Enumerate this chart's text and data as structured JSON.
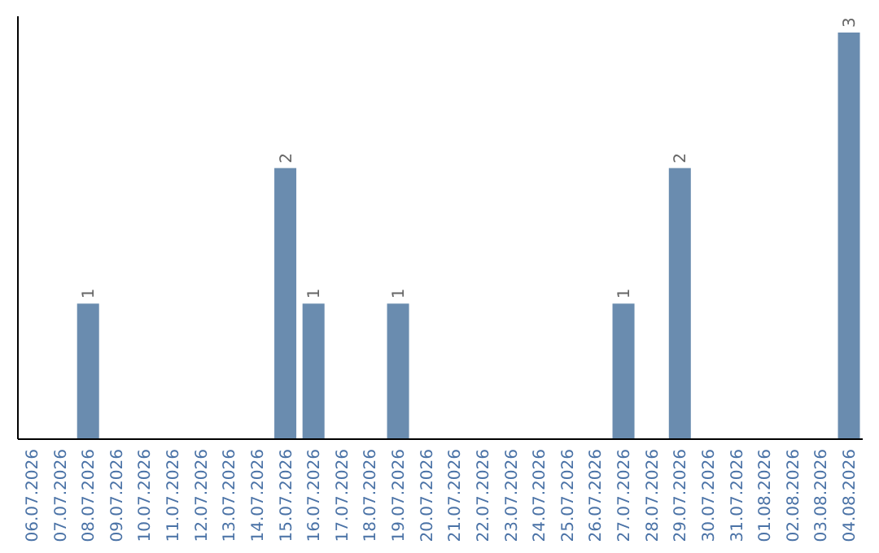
{
  "chart_data": {
    "type": "bar",
    "categories": [
      "06.07.2026",
      "07.07.2026",
      "08.07.2026",
      "09.07.2026",
      "10.07.2026",
      "11.07.2026",
      "12.07.2026",
      "13.07.2026",
      "14.07.2026",
      "15.07.2026",
      "16.07.2026",
      "17.07.2026",
      "18.07.2026",
      "19.07.2026",
      "20.07.2026",
      "21.07.2026",
      "22.07.2026",
      "23.07.2026",
      "24.07.2026",
      "25.07.2026",
      "26.07.2026",
      "27.07.2026",
      "28.07.2026",
      "29.07.2026",
      "30.07.2026",
      "31.07.2026",
      "01.08.2026",
      "02.08.2026",
      "03.08.2026",
      "04.08.2026"
    ],
    "values": [
      0,
      0,
      1,
      0,
      0,
      0,
      0,
      0,
      0,
      2,
      1,
      0,
      0,
      1,
      0,
      0,
      0,
      0,
      0,
      0,
      0,
      1,
      0,
      2,
      0,
      0,
      0,
      0,
      0,
      3
    ],
    "value_labels": [
      null,
      null,
      "1",
      null,
      null,
      null,
      null,
      null,
      null,
      "2",
      "1",
      null,
      null,
      "1",
      null,
      null,
      null,
      null,
      null,
      null,
      null,
      "1",
      null,
      "2",
      null,
      null,
      null,
      null,
      null,
      "3"
    ],
    "color": "#6a8caf",
    "tick_labels": "x"
  }
}
